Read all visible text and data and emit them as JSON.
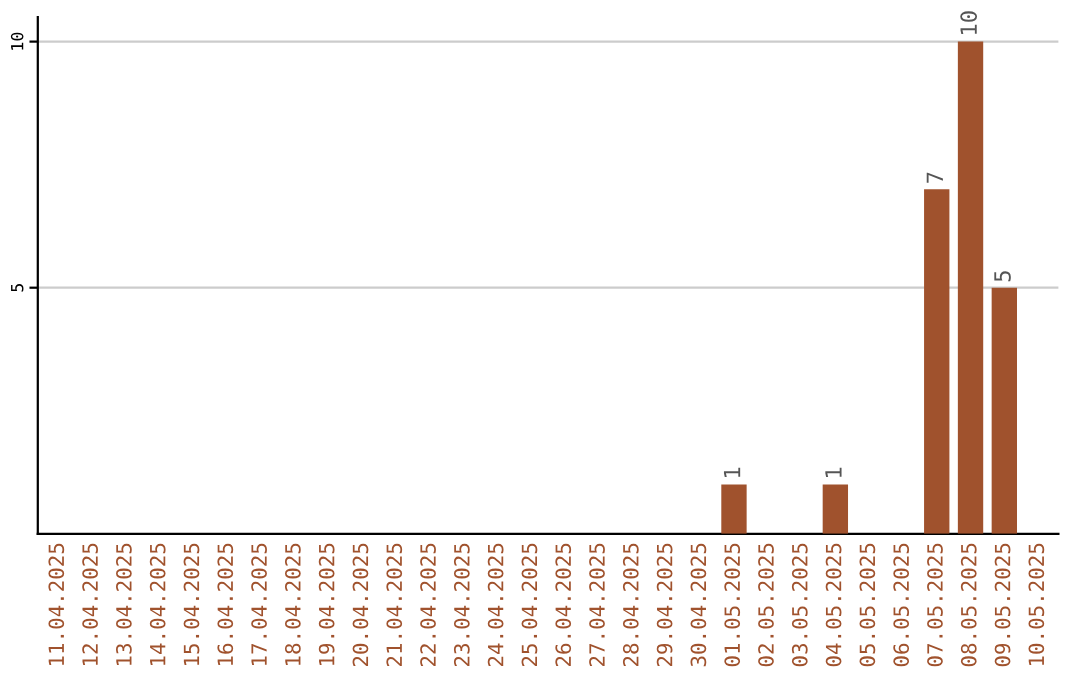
{
  "chart_data": {
    "type": "bar",
    "categories": [
      "11.04.2025",
      "12.04.2025",
      "13.04.2025",
      "14.04.2025",
      "15.04.2025",
      "16.04.2025",
      "17.04.2025",
      "18.04.2025",
      "19.04.2025",
      "20.04.2025",
      "21.04.2025",
      "22.04.2025",
      "23.04.2025",
      "24.04.2025",
      "25.04.2025",
      "26.04.2025",
      "27.04.2025",
      "28.04.2025",
      "29.04.2025",
      "30.04.2025",
      "01.05.2025",
      "02.05.2025",
      "03.05.2025",
      "04.05.2025",
      "05.05.2025",
      "06.05.2025",
      "07.05.2025",
      "08.05.2025",
      "09.05.2025",
      "10.05.2025"
    ],
    "values": [
      0,
      0,
      0,
      0,
      0,
      0,
      0,
      0,
      0,
      0,
      0,
      0,
      0,
      0,
      0,
      0,
      0,
      0,
      0,
      0,
      1,
      0,
      0,
      1,
      0,
      0,
      7,
      10,
      5,
      0
    ],
    "value_labels": [
      null,
      null,
      null,
      null,
      null,
      null,
      null,
      null,
      null,
      null,
      null,
      null,
      null,
      null,
      null,
      null,
      null,
      null,
      null,
      null,
      "1",
      null,
      null,
      "1",
      null,
      null,
      "7",
      "10",
      "5",
      null
    ],
    "color": "#a0522d",
    "ylim": [
      0,
      10.5
    ],
    "yticks": [
      5,
      10
    ],
    "grid": "y"
  }
}
